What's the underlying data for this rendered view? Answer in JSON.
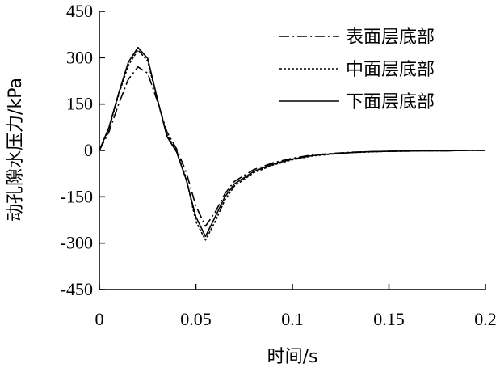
{
  "chart_data": {
    "type": "line",
    "xlabel": "时间/s",
    "ylabel": "动孔隙水压力/kPa",
    "xlim": [
      0,
      0.2
    ],
    "ylim": [
      -450,
      450
    ],
    "x_ticks": [
      0,
      0.05,
      0.1,
      0.15,
      0.2
    ],
    "x_tick_labels": [
      "0",
      "0.05",
      "0.1",
      "0.15",
      "0.2"
    ],
    "y_ticks": [
      450,
      300,
      150,
      0,
      -150,
      -300,
      -450
    ],
    "y_tick_labels": [
      "450",
      "300",
      "150",
      "0",
      "-150",
      "-300",
      "-450"
    ],
    "grid": false,
    "legend_position": "top-right",
    "series": [
      {
        "name": "表面层底部",
        "style": "dashdot",
        "x": [
          0,
          0.005,
          0.01,
          0.015,
          0.02,
          0.025,
          0.03,
          0.035,
          0.04,
          0.045,
          0.05,
          0.055,
          0.06,
          0.065,
          0.07,
          0.08,
          0.09,
          0.1,
          0.11,
          0.12,
          0.13,
          0.14,
          0.15,
          0.16,
          0.17,
          0.18,
          0.19,
          0.2
        ],
        "values": [
          0,
          60,
          150,
          230,
          270,
          250,
          160,
          60,
          5,
          -70,
          -180,
          -245,
          -200,
          -140,
          -100,
          -62,
          -40,
          -25,
          -15,
          -10,
          -6,
          -4,
          -3,
          -2,
          -1,
          -1,
          0,
          0
        ]
      },
      {
        "name": "中面层底部",
        "style": "dotted",
        "x": [
          0,
          0.005,
          0.01,
          0.015,
          0.02,
          0.025,
          0.03,
          0.035,
          0.04,
          0.045,
          0.05,
          0.055,
          0.06,
          0.065,
          0.07,
          0.08,
          0.09,
          0.1,
          0.11,
          0.12,
          0.13,
          0.14,
          0.15,
          0.16,
          0.17,
          0.18,
          0.19,
          0.2
        ],
        "values": [
          0,
          70,
          180,
          275,
          325,
          290,
          165,
          50,
          0,
          -90,
          -230,
          -290,
          -230,
          -160,
          -115,
          -72,
          -47,
          -30,
          -18,
          -12,
          -7,
          -5,
          -3,
          -2,
          -1,
          -1,
          0,
          0
        ]
      },
      {
        "name": "下面层底部",
        "style": "solid",
        "x": [
          0,
          0.005,
          0.01,
          0.015,
          0.02,
          0.025,
          0.03,
          0.035,
          0.04,
          0.045,
          0.05,
          0.055,
          0.06,
          0.065,
          0.07,
          0.08,
          0.09,
          0.1,
          0.11,
          0.12,
          0.13,
          0.14,
          0.15,
          0.16,
          0.17,
          0.18,
          0.19,
          0.2
        ],
        "values": [
          0,
          75,
          185,
          285,
          333,
          298,
          168,
          45,
          -5,
          -95,
          -215,
          -278,
          -215,
          -150,
          -108,
          -68,
          -44,
          -28,
          -17,
          -11,
          -7,
          -4,
          -3,
          -2,
          -1,
          -1,
          0,
          0
        ]
      }
    ]
  }
}
